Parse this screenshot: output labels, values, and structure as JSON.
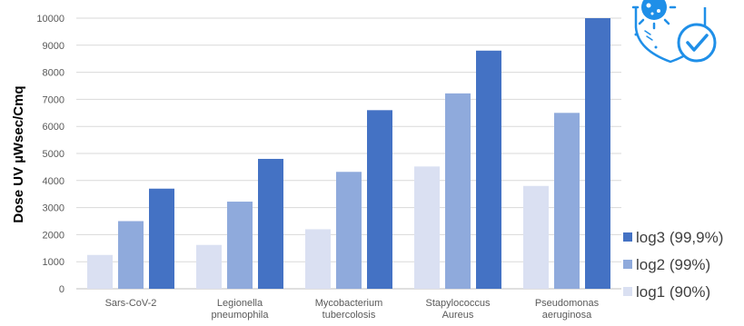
{
  "chart_data": {
    "type": "bar",
    "ylabel": "Dose UV µWsec/Cmq",
    "xlabel": "",
    "ylim": [
      0,
      10000
    ],
    "yticks": [
      "0",
      "1000",
      "2000",
      "3000",
      "4000",
      "5000",
      "6000",
      "7000",
      "8000",
      "9000",
      "10000"
    ],
    "grid": true,
    "legend_position": "bottom-right",
    "categories": [
      [
        "Sars-CoV-2"
      ],
      [
        "Legionella",
        "pneumophila"
      ],
      [
        "Mycobacterium",
        "tubercolosis"
      ],
      [
        "Stapylococcus",
        "Aureus"
      ],
      [
        "Pseudomonas",
        "aeruginosa"
      ]
    ],
    "series": [
      {
        "name": "log1 (90%)",
        "color": "#dae0f2",
        "values": [
          1250,
          1620,
          2200,
          4520,
          3800
        ]
      },
      {
        "name": "log2 (99%)",
        "color": "#8faadc",
        "values": [
          2500,
          3220,
          4320,
          7220,
          6500
        ]
      },
      {
        "name": "log3 (99,9%)",
        "color": "#4472c4",
        "values": [
          3700,
          4800,
          6600,
          8800,
          10000
        ]
      }
    ],
    "legend_order": [
      "log3 (99,9%)",
      "log2 (99%)",
      "log1 (90%)"
    ]
  },
  "badge": {
    "icon": "virus-shield-check-icon",
    "color": "#1f8fe8"
  }
}
